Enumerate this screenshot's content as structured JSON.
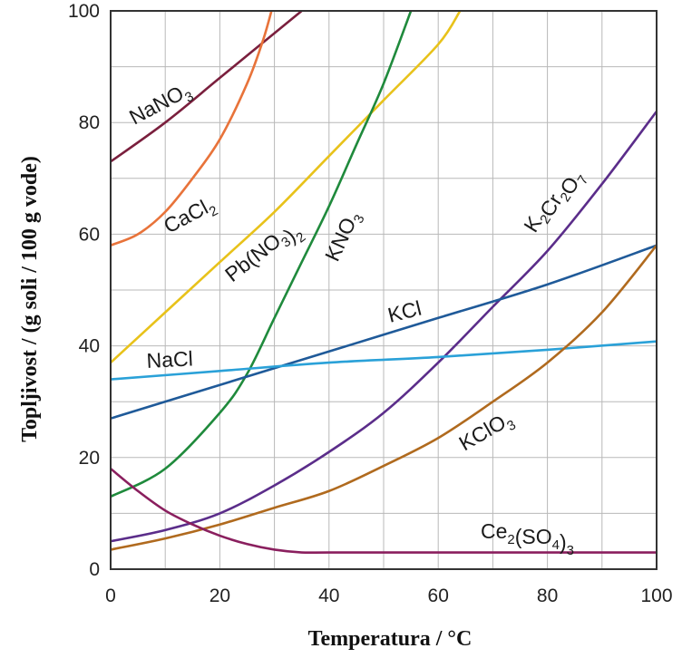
{
  "chart_data": {
    "type": "line",
    "xlabel": "Temperatura / °C",
    "ylabel": "Topljivost / (g soli / 100 g vode)",
    "xlim": [
      0,
      100
    ],
    "ylim": [
      0,
      100
    ],
    "x_ticks": [
      0,
      20,
      40,
      60,
      80,
      100
    ],
    "y_ticks": [
      0,
      20,
      40,
      60,
      80,
      100
    ],
    "grid": true,
    "legend": "none",
    "series": [
      {
        "name": "NaNO3",
        "label": "NaNO",
        "subscript": "3",
        "color": "#7a1f3d",
        "x": [
          0,
          10,
          20,
          30,
          40
        ],
        "y": [
          73,
          80,
          88,
          96,
          104
        ]
      },
      {
        "name": "CaCl2",
        "label": "CaCl",
        "subscript": "2",
        "color": "#e8733a",
        "x": [
          0,
          5,
          10,
          15,
          20,
          25,
          28,
          30
        ],
        "y": [
          58,
          60,
          64,
          70,
          77,
          87,
          95,
          102
        ]
      },
      {
        "name": "Pb(NO3)2",
        "label": "Pb(NO",
        "subscript": "3",
        "suffix": ")",
        "subscript2": "2",
        "color": "#e8c21a",
        "x": [
          0,
          10,
          20,
          30,
          40,
          50,
          60,
          64
        ],
        "y": [
          37,
          46,
          55,
          64,
          74,
          84,
          94,
          100
        ]
      },
      {
        "name": "KNO3",
        "label": "KNO",
        "subscript": "3",
        "color": "#1f8a3c",
        "x": [
          0,
          10,
          20,
          25,
          30,
          35,
          40,
          45,
          50,
          55
        ],
        "y": [
          13,
          18,
          28,
          35,
          45,
          55,
          65,
          76,
          87,
          100
        ]
      },
      {
        "name": "K2Cr2O7",
        "label": "K",
        "subscript": "2",
        "color": "#5b2d8a",
        "x": [
          0,
          10,
          20,
          30,
          40,
          50,
          60,
          70,
          80,
          90,
          100
        ],
        "y": [
          5,
          7,
          10,
          15,
          21,
          28,
          37,
          47,
          57,
          69,
          82
        ]
      },
      {
        "name": "KCl",
        "label": "KCl",
        "color": "#1f5a99",
        "x": [
          0,
          20,
          40,
          60,
          80,
          100
        ],
        "y": [
          27,
          33,
          39,
          45,
          51,
          58
        ]
      },
      {
        "name": "NaCl",
        "label": "NaCl",
        "color": "#2aa1d8",
        "x": [
          0,
          20,
          40,
          60,
          80,
          100
        ],
        "y": [
          34,
          35.5,
          37,
          38,
          39.3,
          40.8
        ]
      },
      {
        "name": "KClO3",
        "label": "KClO",
        "subscript": "3",
        "color": "#b06a1e",
        "x": [
          0,
          10,
          20,
          30,
          40,
          50,
          60,
          70,
          80,
          90,
          100
        ],
        "y": [
          3.5,
          5.5,
          8,
          11,
          14,
          18.5,
          23.5,
          30,
          37,
          46,
          58
        ]
      },
      {
        "name": "Ce2(SO4)3",
        "label": "Ce",
        "subscript": "2",
        "suffix": "(SO",
        "subscript2": "4",
        "suffix2": ")",
        "subscript3": "3",
        "color": "#8a1f5e",
        "x": [
          0,
          5,
          10,
          15,
          20,
          25,
          30,
          35,
          40,
          60,
          80,
          100
        ],
        "y": [
          18,
          14,
          10.5,
          8,
          6,
          4.5,
          3.5,
          3,
          3,
          3,
          3,
          3
        ]
      }
    ]
  }
}
